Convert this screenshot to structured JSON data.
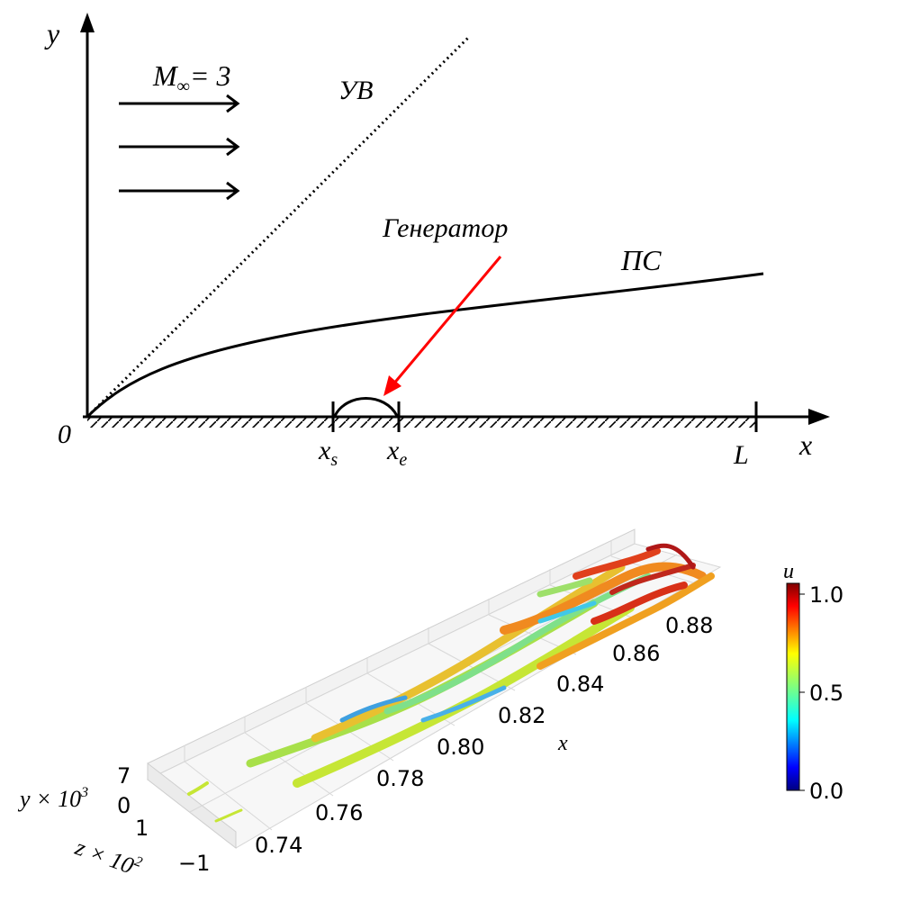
{
  "top_diagram": {
    "axis_y_label": "y",
    "axis_x_label": "x",
    "origin_label": "0",
    "mach_label": "M",
    "mach_sub": "∞",
    "mach_value": "= 3",
    "shock_label": "УВ",
    "boundary_layer_label": "ПС",
    "generator_label": "Генератор",
    "xs_label": "x",
    "xs_sub": "s",
    "xe_label": "x",
    "xe_sub": "e",
    "length_label": "L",
    "colors": {
      "arrow": "#ff0000",
      "lines": "#000000"
    }
  },
  "bottom_plot": {
    "x_axis_label": "x",
    "x_ticks": [
      "0.74",
      "0.76",
      "0.78",
      "0.80",
      "0.82",
      "0.84",
      "0.86",
      "0.88"
    ],
    "y_axis_label": "y × 10",
    "y_axis_exp": "3",
    "y_ticks": [
      "7",
      "0"
    ],
    "z_axis_label": "z × 10",
    "z_axis_exp": "2",
    "z_ticks": [
      "1",
      "−1"
    ],
    "colorbar_label": "u",
    "colorbar_ticks": [
      "1.0",
      "0.5",
      "0.0"
    ],
    "colormap": "jet"
  }
}
